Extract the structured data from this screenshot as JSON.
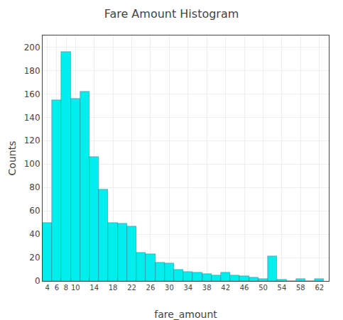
{
  "chart_data": {
    "type": "histogram",
    "title": "Fare Amount Histogram",
    "xlabel": "fare_amount",
    "ylabel": "Counts",
    "bins": [
      3,
      5,
      7,
      9,
      11,
      13,
      15,
      17,
      19,
      21,
      23,
      25,
      27,
      29,
      31,
      33,
      35,
      37,
      39,
      41,
      43,
      45,
      47,
      49,
      51,
      53,
      55,
      57,
      59,
      61,
      63
    ],
    "values": [
      50,
      155,
      196,
      156,
      162,
      106,
      78,
      50,
      49,
      47,
      24,
      23,
      16,
      15,
      10,
      8,
      7,
      6,
      5,
      7,
      5,
      4,
      3,
      2,
      21,
      1,
      0,
      2,
      0,
      2
    ],
    "color": "#00EEEE",
    "xlim": [
      3,
      64
    ],
    "xticks": [
      4,
      6,
      8,
      10,
      14,
      18,
      22,
      26,
      30,
      34,
      38,
      42,
      46,
      50,
      54,
      58,
      62
    ],
    "ylim": [
      0,
      210
    ],
    "yticks": [
      0,
      20,
      40,
      60,
      80,
      100,
      120,
      140,
      160,
      180,
      200
    ],
    "grid": true
  }
}
